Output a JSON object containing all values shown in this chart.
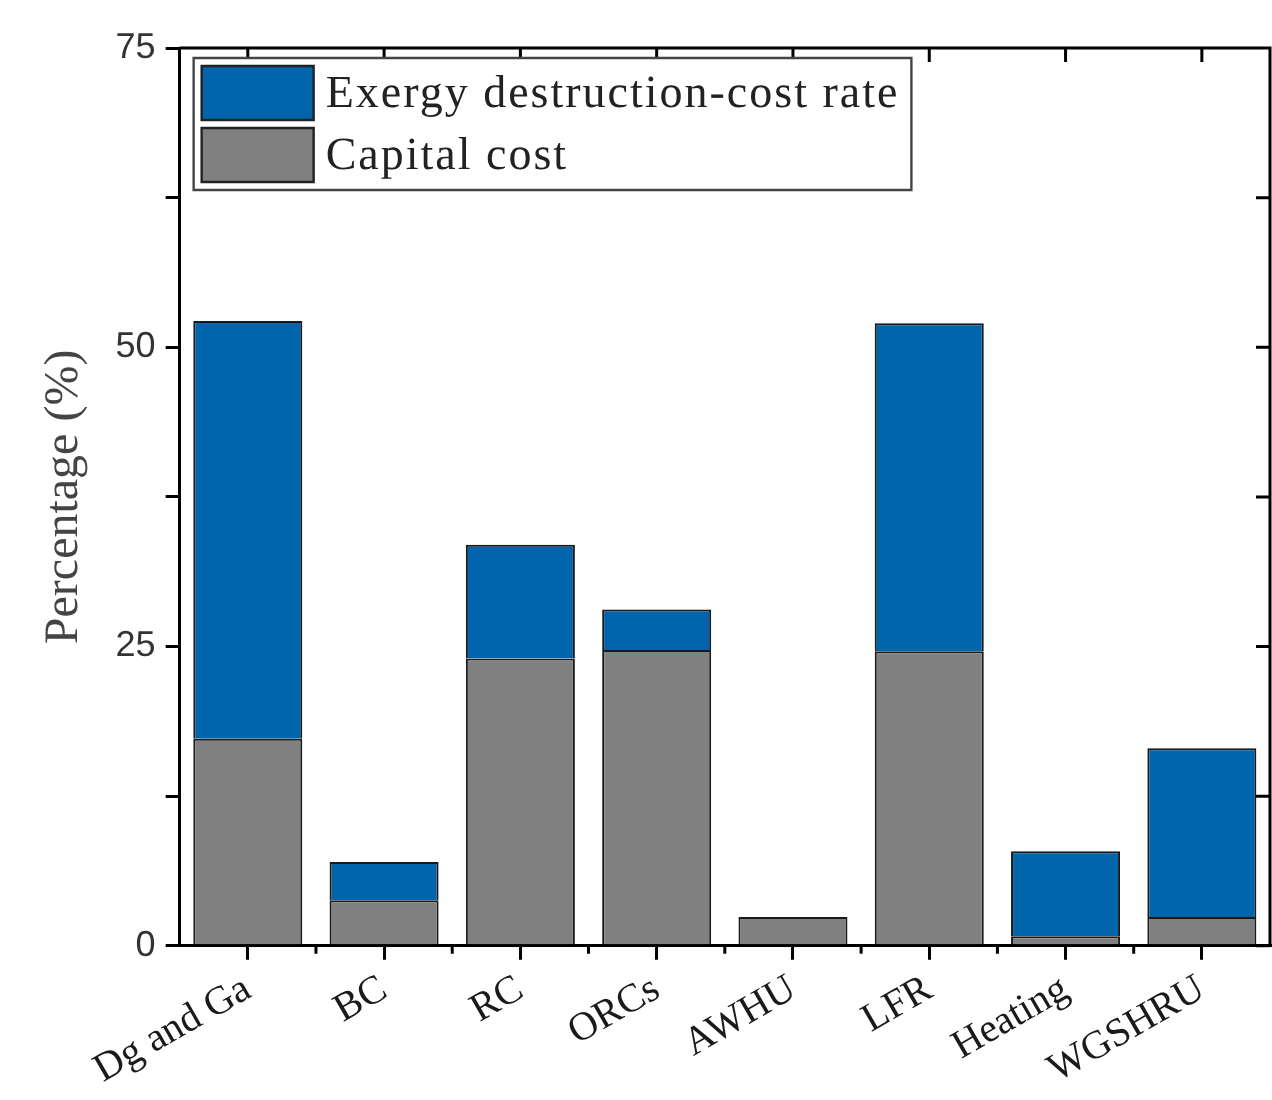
{
  "chart_data": {
    "type": "bar",
    "ylabel": "Percentage (%)",
    "categories": [
      "Dg and Ga",
      "BC",
      "RC",
      "ORCs",
      "AWHU",
      "LFR",
      "Heating",
      "WGSHRU"
    ],
    "series": [
      {
        "name": "Capital cost",
        "color": "#808080",
        "values": [
          17.3,
          3.8,
          24.0,
          24.7,
          2.4,
          24.6,
          0.8,
          2.4
        ]
      },
      {
        "name": "Exergy destruction-cost rate",
        "color": "#0065ab",
        "values": [
          34.9,
          3.2,
          9.5,
          3.4,
          0,
          27.4,
          7.1,
          14.1
        ]
      }
    ],
    "stacked": true,
    "ylim": [
      0,
      75
    ],
    "yticks": [
      0,
      {
        "value": 12.5,
        "label": null
      },
      25,
      {
        "value": 37.5,
        "label": null
      },
      50,
      {
        "value": 62.5,
        "label": null
      },
      75
    ],
    "legend": "top left"
  }
}
